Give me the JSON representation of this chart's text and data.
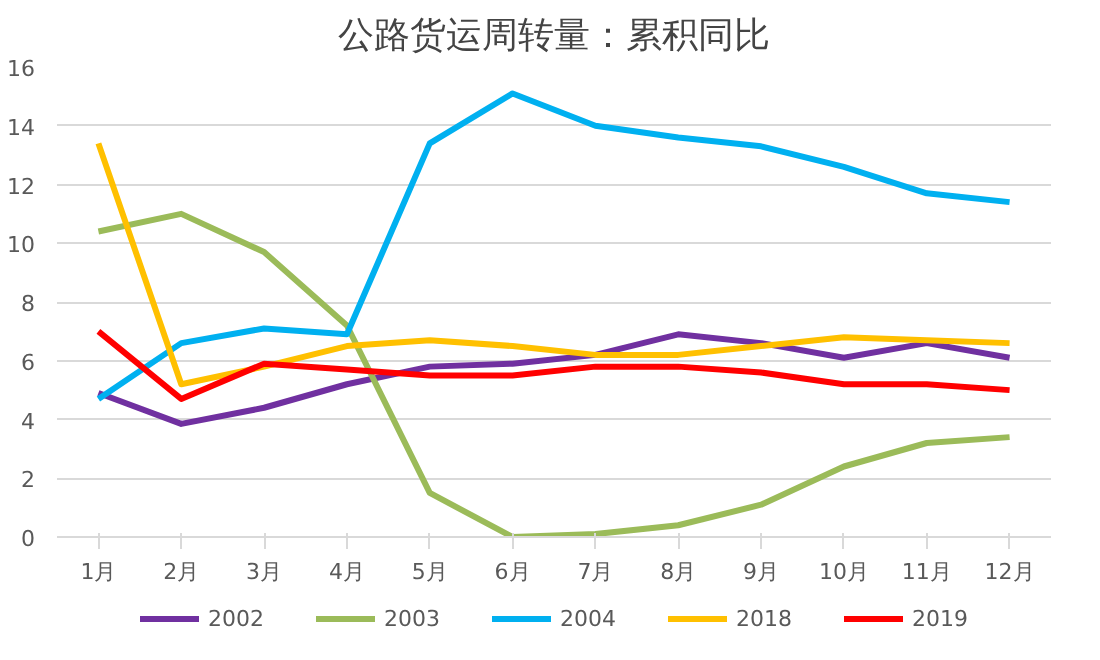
{
  "chart_data": {
    "type": "line",
    "title": "公路货运周转量：累积同比",
    "categories": [
      "1月",
      "2月",
      "3月",
      "4月",
      "5月",
      "6月",
      "7月",
      "8月",
      "9月",
      "10月",
      "11月",
      "12月"
    ],
    "ylim": [
      0,
      16
    ],
    "yticks": [
      0,
      2,
      4,
      6,
      8,
      10,
      12,
      14,
      16
    ],
    "grid": "y",
    "legend": "bottom",
    "line_style": "solid",
    "marker": "none",
    "series": [
      {
        "name": "2002",
        "color": "#7030a0",
        "values": [
          4.9,
          3.85,
          4.4,
          5.2,
          5.8,
          5.9,
          6.2,
          6.9,
          6.6,
          6.1,
          6.6,
          6.1
        ]
      },
      {
        "name": "2003",
        "color": "#9bbb59",
        "values": [
          10.4,
          11.0,
          9.7,
          7.2,
          1.5,
          0.0,
          0.1,
          0.4,
          1.1,
          2.4,
          3.2,
          3.4
        ]
      },
      {
        "name": "2004",
        "color": "#00b0f0",
        "values": [
          4.7,
          6.6,
          7.1,
          6.9,
          13.4,
          15.1,
          14.0,
          13.6,
          13.3,
          12.6,
          11.7,
          11.4
        ]
      },
      {
        "name": "2018",
        "color": "#ffc000",
        "values": [
          13.4,
          5.2,
          5.8,
          6.5,
          6.7,
          6.5,
          6.2,
          6.2,
          6.5,
          6.8,
          6.7,
          6.6
        ]
      },
      {
        "name": "2019",
        "color": "#ff0000",
        "values": [
          7.0,
          4.7,
          5.9,
          5.7,
          5.5,
          5.5,
          5.8,
          5.8,
          5.6,
          5.2,
          5.2,
          5.0
        ]
      }
    ]
  }
}
